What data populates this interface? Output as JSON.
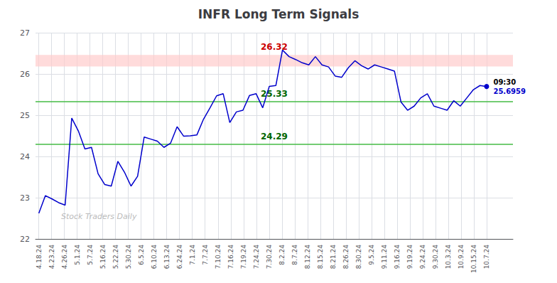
{
  "chart_data": {
    "type": "line",
    "title": "INFR Long Term Signals",
    "color": "#0000CC",
    "grid": true,
    "values": [
      22.62,
      23.05,
      22.97,
      22.88,
      22.82,
      24.93,
      24.62,
      24.18,
      24.22,
      23.58,
      23.32,
      23.28,
      23.88,
      23.62,
      23.28,
      23.52,
      24.47,
      24.42,
      24.37,
      24.22,
      24.32,
      24.72,
      24.49,
      24.5,
      24.52,
      24.9,
      25.18,
      25.47,
      25.52,
      24.82,
      25.08,
      25.12,
      25.48,
      25.52,
      25.18,
      25.7,
      25.72,
      26.58,
      26.42,
      26.35,
      26.27,
      26.22,
      26.42,
      26.22,
      26.17,
      25.95,
      25.92,
      26.15,
      26.32,
      26.2,
      26.12,
      26.22,
      26.17,
      26.12,
      26.07,
      25.32,
      25.12,
      25.22,
      25.42,
      25.52,
      25.22,
      25.17,
      25.12,
      25.35,
      25.22,
      25.42,
      25.62,
      25.72,
      25.6959
    ],
    "xlim": [
      -0.5,
      72
    ],
    "xticks": [
      {
        "value": 0,
        "label": "4.18.24"
      },
      {
        "value": 1.942857,
        "label": "4.23.24"
      },
      {
        "value": 3.885714,
        "label": "4.26.24"
      },
      {
        "value": 5.828571,
        "label": "5.1.24"
      },
      {
        "value": 7.771429,
        "label": "5.7.24"
      },
      {
        "value": 9.714286,
        "label": "5.16.24"
      },
      {
        "value": 11.657143,
        "label": "5.22.24"
      },
      {
        "value": 13.6,
        "label": "5.30.24"
      },
      {
        "value": 15.542857,
        "label": "6.5.24"
      },
      {
        "value": 17.485714,
        "label": "6.10.24"
      },
      {
        "value": 19.428571,
        "label": "6.13.24"
      },
      {
        "value": 21.371429,
        "label": "6.24.24"
      },
      {
        "value": 23.314286,
        "label": "7.1.24"
      },
      {
        "value": 25.257143,
        "label": "7.7.24"
      },
      {
        "value": 27.2,
        "label": "7.10.24"
      },
      {
        "value": 29.142857,
        "label": "7.16.24"
      },
      {
        "value": 31.085714,
        "label": "7.19.24"
      },
      {
        "value": 33.028571,
        "label": "7.24.24"
      },
      {
        "value": 34.971429,
        "label": "7.30.24"
      },
      {
        "value": 36.914286,
        "label": "8.2.24"
      },
      {
        "value": 38.857143,
        "label": "8.7.24"
      },
      {
        "value": 40.8,
        "label": "8.12.24"
      },
      {
        "value": 42.742857,
        "label": "8.15.24"
      },
      {
        "value": 44.685714,
        "label": "8.21.24"
      },
      {
        "value": 46.628571,
        "label": "8.26.24"
      },
      {
        "value": 48.571429,
        "label": "8.30.24"
      },
      {
        "value": 50.514286,
        "label": "9.5.24"
      },
      {
        "value": 52.457143,
        "label": "9.11.24"
      },
      {
        "value": 54.4,
        "label": "9.16.24"
      },
      {
        "value": 56.342857,
        "label": "9.19.24"
      },
      {
        "value": 58.285714,
        "label": "9.24.24"
      },
      {
        "value": 60.228571,
        "label": "9.30.24"
      },
      {
        "value": 62.171429,
        "label": "10.3.24"
      },
      {
        "value": 64.114286,
        "label": "10.9.24"
      },
      {
        "value": 66.057143,
        "label": "10.15.24"
      },
      {
        "value": 68,
        "label": "10.7.24"
      }
    ],
    "ylim": [
      22,
      27
    ],
    "yticks": [
      22,
      23,
      24,
      25,
      26,
      27
    ],
    "band": {
      "from": 26.18,
      "to": 26.46,
      "color": "#ffcccc",
      "label": "26.32",
      "label_color": "#cc0000"
    },
    "hlines": [
      {
        "y": 25.33,
        "color": "#44bb44",
        "label": "25.33",
        "label_color": "#006600"
      },
      {
        "y": 24.29,
        "color": "#44bb44",
        "label": "24.29",
        "label_color": "#006600"
      }
    ],
    "last_point": {
      "label": "09:30",
      "label_color": "#000000",
      "value_label": "25.6959",
      "color": "#0000CC"
    },
    "watermark": {
      "text": "Stock Traders Daily",
      "color": "#bbbbbb"
    }
  }
}
